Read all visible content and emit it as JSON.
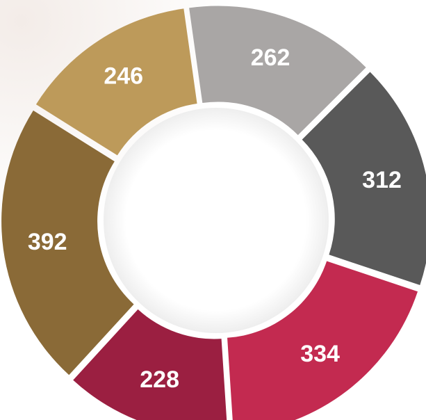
{
  "chart_data": {
    "type": "donut",
    "values": [
      262,
      312,
      334,
      228,
      392,
      246
    ],
    "colors": [
      "#a9a6a5",
      "#595959",
      "#c32a50",
      "#9b1f41",
      "#8a6a37",
      "#bd9a5a"
    ]
  }
}
